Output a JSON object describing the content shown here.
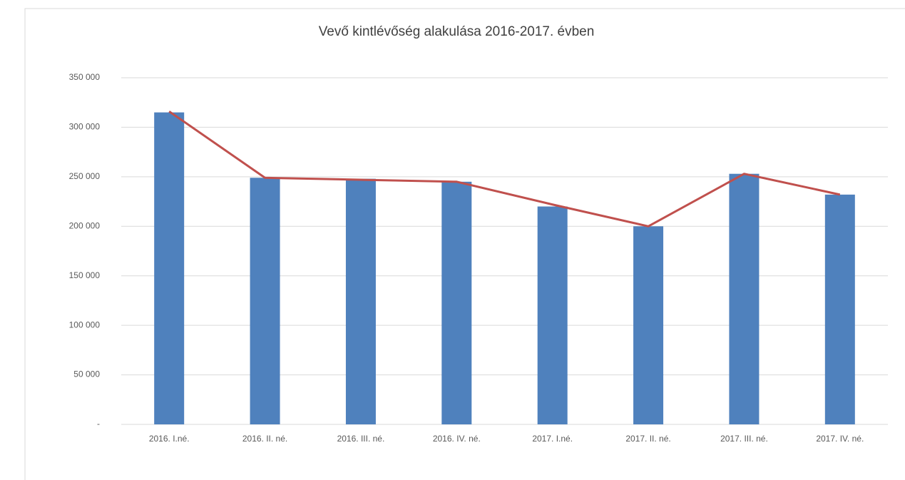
{
  "chart_data": {
    "type": "bar",
    "title": "Vevő kintlévőség alakulása 2016-2017. évben",
    "categories": [
      "2016. I.né.",
      "2016. II. né.",
      "2016. III. né.",
      "2016. IV. né.",
      "2017. I.né.",
      "2017. II. né.",
      "2017. III. né.",
      "2017. IV. né."
    ],
    "series": [
      {
        "type": "bar",
        "color": "#4f81bd",
        "values": [
          315000,
          249000,
          248000,
          245000,
          220000,
          200000,
          253000,
          232000
        ]
      },
      {
        "type": "line",
        "color": "#c0504d",
        "values": [
          316000,
          249000,
          247000,
          245000,
          222000,
          200000,
          253000,
          232000
        ]
      }
    ],
    "ylim": [
      0,
      350000
    ],
    "yticks": [
      {
        "value": 0,
        "label": "-"
      },
      {
        "value": 50000,
        "label": "50 000"
      },
      {
        "value": 100000,
        "label": "100 000"
      },
      {
        "value": 150000,
        "label": "150 000"
      },
      {
        "value": 200000,
        "label": "200 000"
      },
      {
        "value": 250000,
        "label": "250 000"
      },
      {
        "value": 300000,
        "label": "300 000"
      },
      {
        "value": 350000,
        "label": "350 000"
      }
    ],
    "grid": true
  }
}
